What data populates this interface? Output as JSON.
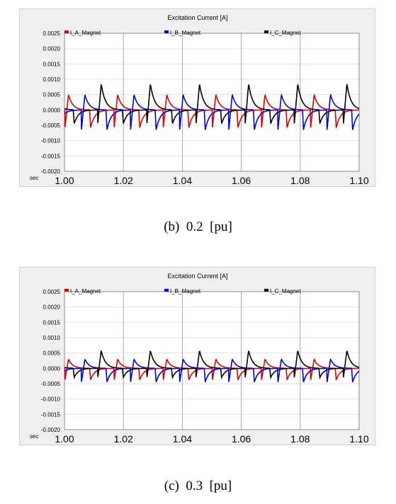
{
  "panels": [
    {
      "caption": "(b)  0.2  [pu]",
      "chart_data": {
        "type": "line",
        "title": "Excitation Current [A]",
        "xlabel": "sec",
        "ylabel": "",
        "xlim": [
          1.0,
          1.1
        ],
        "ylim": [
          -0.002,
          0.0025
        ],
        "xticks": [
          "1.00",
          "1.02",
          "1.04",
          "1.06",
          "1.08",
          "1.10"
        ],
        "yticks": [
          "0.0025",
          "0.0020",
          "0.0015",
          "0.0010",
          "0.0005",
          "0.0000",
          "-0.0005",
          "-0.0010",
          "-0.0015",
          "-0.0020"
        ],
        "grid": true,
        "legend_position": "top",
        "period": 0.01667,
        "series": [
          {
            "name": "I_A_Magnet",
            "color": "#e00000",
            "peak": 0.0005,
            "trough": -0.00058,
            "phase": 0.0
          },
          {
            "name": "I_B_Magnet",
            "color": "#0000e0",
            "peak": 0.0005,
            "trough": -0.00065,
            "phase": 0.00556
          },
          {
            "name": "I_C_Magnet",
            "color": "#000000",
            "peak": 0.00085,
            "trough": -0.00045,
            "phase": 0.01111
          }
        ]
      }
    },
    {
      "caption": "(c)  0.3  [pu]",
      "chart_data": {
        "type": "line",
        "title": "Excitation Current [A]",
        "xlabel": "sec",
        "ylabel": "",
        "xlim": [
          1.0,
          1.1
        ],
        "ylim": [
          -0.002,
          0.0025
        ],
        "xticks": [
          "1.00",
          "1.02",
          "1.04",
          "1.06",
          "1.08",
          "1.10"
        ],
        "yticks": [
          "0.0025",
          "0.0020",
          "0.0015",
          "0.0010",
          "0.0005",
          "0.0000",
          "-0.0005",
          "-0.0010",
          "-0.0015",
          "-0.0020"
        ],
        "grid": true,
        "legend_position": "top",
        "period": 0.01667,
        "series": [
          {
            "name": "I_A_Magnet",
            "color": "#e00000",
            "peak": 0.0003,
            "trough": -0.00038,
            "phase": 0.0
          },
          {
            "name": "I_B_Magnet",
            "color": "#0000e0",
            "peak": 0.0003,
            "trough": -0.00045,
            "phase": 0.00556
          },
          {
            "name": "I_C_Magnet",
            "color": "#000000",
            "peak": 0.00058,
            "trough": -0.0003,
            "phase": 0.01111
          }
        ]
      }
    }
  ]
}
